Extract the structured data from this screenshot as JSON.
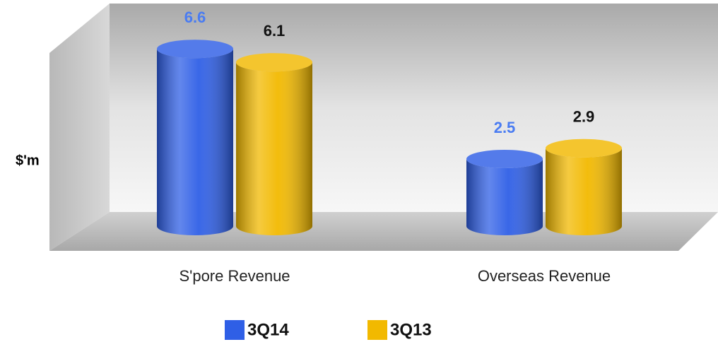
{
  "chart_data": {
    "type": "bar3d",
    "y_label": "$'m",
    "categories": [
      "S'pore Revenue",
      "Overseas Revenue"
    ],
    "series": [
      {
        "name": "3Q14",
        "color": "#2f5fe6",
        "label_color": "#4a7cf2",
        "values": [
          6.6,
          2.5
        ]
      },
      {
        "name": "3Q13",
        "color": "#f2b900",
        "label_color": "#111111",
        "values": [
          6.1,
          2.9
        ]
      }
    ],
    "ylim": [
      0,
      7
    ],
    "legend": "bottom"
  }
}
